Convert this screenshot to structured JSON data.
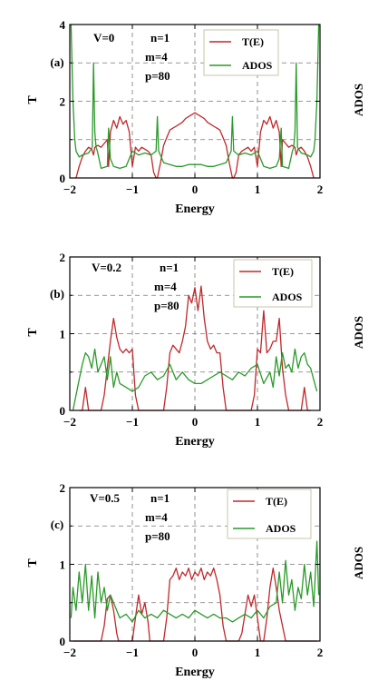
{
  "colors": {
    "transmission": "#c0282b",
    "ados": "#2a9a2a",
    "grid": "#777777",
    "axis": "#000000"
  },
  "chart_data": [
    {
      "type": "line",
      "panel": "(a)",
      "title": "",
      "xlabel": "Energy",
      "ylabel": "T",
      "ylabel_right": "ADOS",
      "xlim": [
        -2,
        2
      ],
      "ylim": [
        0,
        4
      ],
      "xticks": [
        "−2",
        "−1",
        "0",
        "1",
        "2"
      ],
      "yticks": [
        "0",
        "2",
        "4"
      ],
      "annotations": [
        "V=0",
        "n=1",
        "m=4",
        "p=80"
      ],
      "legend": {
        "placement": "top-right",
        "entries": [
          "T(E)",
          "ADOS"
        ]
      },
      "series": [
        {
          "name": "T(E)",
          "x": [
            -1.9,
            -1.85,
            -1.8,
            -1.75,
            -1.7,
            -1.65,
            -1.62,
            -1.6,
            -1.55,
            -1.5,
            -1.45,
            -1.4,
            -1.38,
            -1.35,
            -1.3,
            -1.25,
            -1.2,
            -1.15,
            -1.1,
            -1.05,
            -1.0,
            -0.95,
            -0.9,
            -0.85,
            -0.8,
            -0.75,
            -0.7,
            -0.66,
            -0.62,
            -0.6,
            -0.55,
            -0.5,
            -0.45,
            -0.4,
            -0.35,
            -0.3,
            -0.25,
            -0.2,
            -0.15,
            -0.1,
            -0.05,
            0.0,
            0.05,
            0.1,
            0.15,
            0.2,
            0.25,
            0.3,
            0.35,
            0.4,
            0.45,
            0.5,
            0.55,
            0.6,
            0.62,
            0.66,
            0.7,
            0.75,
            0.8,
            0.85,
            0.9,
            0.95,
            1.0,
            1.05,
            1.1,
            1.15,
            1.2,
            1.25,
            1.3,
            1.35,
            1.38,
            1.4,
            1.45,
            1.5,
            1.55,
            1.6,
            1.62,
            1.65,
            1.7,
            1.75,
            1.8,
            1.85,
            1.9
          ],
          "y": [
            0.0,
            0.3,
            0.55,
            0.7,
            0.8,
            0.75,
            0.6,
            0.8,
            0.85,
            0.8,
            0.9,
            1.0,
            0.3,
            1.2,
            1.5,
            1.3,
            1.6,
            1.4,
            1.5,
            1.2,
            0.3,
            0.8,
            0.7,
            0.8,
            0.75,
            0.7,
            0.6,
            0.15,
            0.0,
            0.0,
            0.4,
            0.85,
            1.05,
            1.25,
            1.3,
            1.35,
            1.4,
            1.45,
            1.55,
            1.6,
            1.65,
            1.7,
            1.65,
            1.6,
            1.55,
            1.45,
            1.4,
            1.35,
            1.3,
            1.25,
            1.05,
            0.85,
            0.4,
            0.0,
            0.0,
            0.15,
            0.6,
            0.7,
            0.75,
            0.8,
            0.7,
            0.8,
            0.3,
            1.2,
            1.5,
            1.4,
            1.6,
            1.3,
            1.5,
            1.2,
            0.3,
            1.0,
            0.9,
            0.8,
            0.85,
            0.8,
            0.6,
            0.75,
            0.8,
            0.7,
            0.55,
            0.3,
            0.0
          ]
        },
        {
          "name": "ADOS",
          "x": [
            -1.98,
            -1.95,
            -1.92,
            -1.9,
            -1.85,
            -1.8,
            -1.7,
            -1.64,
            -1.62,
            -1.6,
            -1.58,
            -1.56,
            -1.5,
            -1.4,
            -1.38,
            -1.35,
            -1.3,
            -1.2,
            -1.1,
            -1.0,
            -0.9,
            -0.8,
            -0.7,
            -0.62,
            -0.6,
            -0.58,
            -0.5,
            -0.4,
            -0.3,
            -0.2,
            -0.1,
            0.0,
            0.1,
            0.2,
            0.3,
            0.4,
            0.5,
            0.58,
            0.6,
            0.62,
            0.7,
            0.8,
            0.9,
            1.0,
            1.1,
            1.2,
            1.3,
            1.35,
            1.38,
            1.4,
            1.5,
            1.56,
            1.58,
            1.6,
            1.62,
            1.64,
            1.7,
            1.8,
            1.85,
            1.9,
            1.92,
            1.95,
            1.98
          ],
          "y": [
            4.0,
            2.0,
            1.0,
            0.7,
            0.55,
            0.6,
            0.65,
            0.8,
            3.0,
            1.2,
            0.8,
            0.7,
            0.25,
            0.3,
            1.3,
            0.5,
            0.3,
            0.25,
            0.3,
            0.7,
            0.6,
            0.65,
            0.6,
            0.7,
            1.6,
            0.7,
            0.4,
            0.35,
            0.3,
            0.3,
            0.35,
            0.35,
            0.35,
            0.3,
            0.3,
            0.35,
            0.4,
            0.7,
            1.6,
            0.7,
            0.6,
            0.65,
            0.6,
            0.7,
            0.3,
            0.25,
            0.3,
            0.5,
            1.3,
            0.3,
            0.25,
            0.7,
            0.8,
            1.2,
            3.0,
            0.8,
            0.65,
            0.6,
            0.55,
            0.7,
            1.0,
            2.0,
            4.0
          ]
        }
      ]
    },
    {
      "type": "line",
      "panel": "(b)",
      "title": "",
      "xlabel": "Energy",
      "ylabel": "T",
      "ylabel_right": "ADOS",
      "xlim": [
        -2,
        2
      ],
      "ylim": [
        0,
        2
      ],
      "xticks": [
        "−2",
        "−1",
        "0",
        "1",
        "2"
      ],
      "yticks": [
        "0",
        "1",
        "2"
      ],
      "annotations": [
        "V=0.2",
        "n=1",
        "m=4",
        "p=80"
      ],
      "legend": {
        "placement": "top-right",
        "entries": [
          "T(E)",
          "ADOS"
        ]
      },
      "series": [
        {
          "name": "T(E)",
          "x": [
            -1.85,
            -1.8,
            -1.75,
            -1.7,
            -1.6,
            -1.5,
            -1.45,
            -1.4,
            -1.35,
            -1.3,
            -1.25,
            -1.2,
            -1.15,
            -1.1,
            -1.05,
            -1.0,
            -0.95,
            -0.9,
            -0.85,
            -0.8,
            -0.7,
            -0.6,
            -0.5,
            -0.45,
            -0.4,
            -0.35,
            -0.3,
            -0.25,
            -0.2,
            -0.15,
            -0.1,
            -0.05,
            0.0,
            0.05,
            0.1,
            0.15,
            0.2,
            0.25,
            0.3,
            0.35,
            0.4,
            0.45,
            0.5,
            0.6,
            0.7,
            0.8,
            0.9,
            0.95,
            1.0,
            1.05,
            1.1,
            1.15,
            1.2,
            1.25,
            1.3,
            1.35,
            1.4,
            1.45,
            1.5,
            1.6,
            1.7,
            1.75,
            1.8,
            1.85
          ],
          "y": [
            0.0,
            0.0,
            0.3,
            0.0,
            0.0,
            0.0,
            0.2,
            0.55,
            0.9,
            1.2,
            0.95,
            0.8,
            0.75,
            0.8,
            0.75,
            0.8,
            0.2,
            0.0,
            0.0,
            0.0,
            0.0,
            0.0,
            0.0,
            0.3,
            0.75,
            0.85,
            0.8,
            0.75,
            0.9,
            1.1,
            1.5,
            1.4,
            1.6,
            1.3,
            1.62,
            1.2,
            0.9,
            0.8,
            0.85,
            0.75,
            0.75,
            0.3,
            0.0,
            0.0,
            0.0,
            0.0,
            0.0,
            0.2,
            0.8,
            0.75,
            1.3,
            0.75,
            0.8,
            0.9,
            0.9,
            1.2,
            0.55,
            0.2,
            0.0,
            0.0,
            0.0,
            0.3,
            0.0,
            0.0
          ]
        },
        {
          "name": "ADOS",
          "x": [
            -1.95,
            -1.9,
            -1.85,
            -1.8,
            -1.75,
            -1.7,
            -1.65,
            -1.6,
            -1.55,
            -1.5,
            -1.45,
            -1.4,
            -1.35,
            -1.3,
            -1.25,
            -1.2,
            -1.1,
            -1.0,
            -0.9,
            -0.8,
            -0.7,
            -0.6,
            -0.5,
            -0.4,
            -0.3,
            -0.2,
            -0.1,
            0.0,
            0.1,
            0.2,
            0.3,
            0.4,
            0.5,
            0.6,
            0.7,
            0.8,
            0.9,
            1.0,
            1.1,
            1.2,
            1.25,
            1.3,
            1.35,
            1.4,
            1.45,
            1.5,
            1.55,
            1.6,
            1.65,
            1.7,
            1.75,
            1.8,
            1.85,
            1.9,
            1.95
          ],
          "y": [
            0.0,
            0.2,
            0.4,
            0.6,
            0.75,
            0.7,
            0.55,
            0.8,
            0.5,
            0.6,
            0.7,
            0.4,
            0.7,
            0.3,
            0.5,
            0.35,
            0.3,
            0.25,
            0.3,
            0.45,
            0.5,
            0.4,
            0.45,
            0.6,
            0.4,
            0.5,
            0.4,
            0.35,
            0.35,
            0.4,
            0.45,
            0.5,
            0.45,
            0.4,
            0.5,
            0.45,
            0.55,
            0.6,
            0.35,
            0.5,
            0.3,
            0.7,
            0.45,
            0.75,
            0.55,
            0.6,
            0.5,
            0.8,
            0.55,
            0.7,
            0.75,
            0.6,
            0.55,
            0.4,
            0.25
          ]
        }
      ]
    },
    {
      "type": "line",
      "panel": "(c)",
      "title": "",
      "xlabel": "Energy",
      "ylabel": "T",
      "ylabel_right": "ADOS",
      "xlim": [
        -2,
        2
      ],
      "ylim": [
        0,
        2
      ],
      "xticks": [
        "−2",
        "−1",
        "0",
        "1",
        "2"
      ],
      "yticks": [
        "0",
        "1",
        "2"
      ],
      "annotations": [
        "V=0.5",
        "n=1",
        "m=4",
        "p=80"
      ],
      "legend": {
        "placement": "top-right",
        "entries": [
          "T(E)",
          "ADOS"
        ]
      },
      "series": [
        {
          "name": "T(E)",
          "x": [
            -1.95,
            -1.5,
            -1.45,
            -1.4,
            -1.35,
            -1.3,
            -1.25,
            -1.22,
            -1.2,
            -1.0,
            -0.95,
            -0.9,
            -0.85,
            -0.8,
            -0.75,
            -0.72,
            -0.7,
            -0.5,
            -0.45,
            -0.4,
            -0.35,
            -0.3,
            -0.25,
            -0.2,
            -0.15,
            -0.1,
            -0.05,
            0.0,
            0.05,
            0.1,
            0.15,
            0.2,
            0.25,
            0.3,
            0.35,
            0.4,
            0.45,
            0.5,
            0.7,
            0.75,
            0.8,
            0.85,
            0.9,
            0.95,
            1.0,
            1.05,
            1.1,
            1.15,
            1.2,
            1.25,
            1.3,
            1.35,
            1.4,
            1.45,
            1.5,
            1.95
          ],
          "y": [
            0.0,
            0.0,
            0.2,
            0.55,
            0.6,
            0.4,
            0.1,
            0.0,
            0.0,
            0.0,
            0.3,
            0.6,
            0.35,
            0.5,
            0.25,
            0.0,
            0.0,
            0.0,
            0.3,
            0.8,
            0.85,
            0.95,
            0.8,
            0.9,
            0.85,
            0.95,
            0.8,
            0.9,
            0.85,
            0.95,
            0.8,
            0.9,
            0.85,
            0.95,
            0.8,
            0.6,
            0.2,
            0.0,
            0.0,
            0.1,
            0.35,
            0.6,
            0.45,
            0.6,
            0.3,
            0.0,
            0.0,
            0.3,
            0.7,
            0.95,
            0.7,
            0.4,
            0.2,
            0.0,
            0.0,
            0.0
          ]
        },
        {
          "name": "ADOS",
          "x": [
            -1.98,
            -1.95,
            -1.9,
            -1.85,
            -1.8,
            -1.75,
            -1.7,
            -1.65,
            -1.6,
            -1.55,
            -1.5,
            -1.45,
            -1.4,
            -1.35,
            -1.3,
            -1.2,
            -1.1,
            -1.0,
            -0.9,
            -0.8,
            -0.7,
            -0.6,
            -0.5,
            -0.4,
            -0.3,
            -0.2,
            -0.1,
            0.0,
            0.1,
            0.2,
            0.3,
            0.4,
            0.5,
            0.6,
            0.7,
            0.8,
            0.9,
            1.0,
            1.1,
            1.2,
            1.3,
            1.35,
            1.4,
            1.45,
            1.5,
            1.55,
            1.6,
            1.65,
            1.7,
            1.75,
            1.8,
            1.85,
            1.9,
            1.95,
            1.98
          ],
          "y": [
            0.3,
            0.7,
            0.4,
            0.9,
            0.5,
            1.0,
            0.4,
            0.85,
            0.3,
            0.9,
            0.5,
            0.7,
            0.4,
            0.6,
            0.5,
            0.3,
            0.35,
            0.25,
            0.4,
            0.3,
            0.35,
            0.3,
            0.4,
            0.35,
            0.3,
            0.35,
            0.3,
            0.4,
            0.35,
            0.3,
            0.35,
            0.3,
            0.3,
            0.25,
            0.3,
            0.35,
            0.3,
            0.4,
            0.3,
            0.45,
            0.5,
            0.9,
            0.5,
            1.05,
            0.6,
            0.8,
            0.4,
            0.7,
            0.55,
            1.0,
            0.6,
            0.9,
            0.45,
            1.3,
            0.6
          ]
        }
      ]
    }
  ]
}
